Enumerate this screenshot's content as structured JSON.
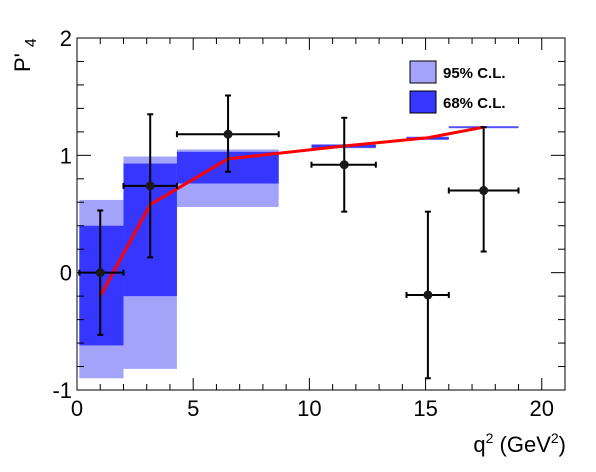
{
  "chart_data": {
    "type": "scatter",
    "title": "",
    "xlabel": {
      "base": "q",
      "sup": "2",
      "unit_open": " (GeV",
      "unit_sup": "2",
      "unit_close": ")"
    },
    "ylabel": {
      "base": "P'",
      "sub": "4"
    },
    "xlim": [
      0,
      21
    ],
    "ylim": [
      -1,
      2
    ],
    "xticks": [
      0,
      5,
      10,
      15,
      20
    ],
    "yticks": [
      -1,
      0,
      1,
      2
    ],
    "grid": false,
    "legend_position": "top-right",
    "bands": {
      "cl95": {
        "label": "95% C.L.",
        "color": "#a3a3fa",
        "bins": [
          {
            "x0": 0.1,
            "x1": 2.0,
            "lo": -0.9,
            "hi": 0.62
          },
          {
            "x0": 2.0,
            "x1": 4.3,
            "lo": -0.82,
            "hi": 0.99
          },
          {
            "x0": 4.3,
            "x1": 8.68,
            "lo": 0.56,
            "hi": 1.05
          },
          {
            "x0": 10.09,
            "x1": 12.86,
            "lo": 1.06,
            "hi": 1.095
          },
          {
            "x0": 14.18,
            "x1": 16.0,
            "lo": 1.13,
            "hi": 1.16
          },
          {
            "x0": 16.0,
            "x1": 19.0,
            "lo": 1.23,
            "hi": 1.25
          }
        ]
      },
      "cl68": {
        "label": "68% C.L.",
        "color": "#3636ff",
        "bins": [
          {
            "x0": 0.1,
            "x1": 2.0,
            "lo": -0.62,
            "hi": 0.4
          },
          {
            "x0": 2.0,
            "x1": 4.3,
            "lo": -0.2,
            "hi": 0.93
          },
          {
            "x0": 4.3,
            "x1": 8.68,
            "lo": 0.76,
            "hi": 1.03
          },
          {
            "x0": 10.09,
            "x1": 12.86,
            "lo": 1.065,
            "hi": 1.09
          },
          {
            "x0": 14.18,
            "x1": 16.0,
            "lo": 1.135,
            "hi": 1.155
          },
          {
            "x0": 16.0,
            "x1": 19.0,
            "lo": 1.235,
            "hi": 1.245
          }
        ]
      }
    },
    "theory_line": {
      "color": "#ff0000",
      "x": [
        1.0,
        3.15,
        6.5,
        11.5,
        15.1,
        17.5
      ],
      "y": [
        -0.2,
        0.58,
        0.97,
        1.08,
        1.15,
        1.24
      ]
    },
    "data_points": [
      {
        "x": 1.0,
        "y": 0.0,
        "xlo": 0.1,
        "xhi": 2.0,
        "ylo": -0.53,
        "yhi": 0.53
      },
      {
        "x": 3.15,
        "y": 0.74,
        "xlo": 2.0,
        "xhi": 4.3,
        "ylo": 0.13,
        "yhi": 1.35
      },
      {
        "x": 6.5,
        "y": 1.18,
        "xlo": 4.3,
        "xhi": 8.68,
        "ylo": 0.86,
        "yhi": 1.51
      },
      {
        "x": 11.5,
        "y": 0.92,
        "xlo": 10.09,
        "xhi": 12.86,
        "ylo": 0.52,
        "yhi": 1.32
      },
      {
        "x": 15.1,
        "y": -0.19,
        "xlo": 14.18,
        "xhi": 16.0,
        "ylo": -0.9,
        "yhi": 0.52
      },
      {
        "x": 17.5,
        "y": 0.7,
        "xlo": 16.0,
        "xhi": 19.0,
        "ylo": 0.18,
        "yhi": 1.24
      }
    ]
  }
}
